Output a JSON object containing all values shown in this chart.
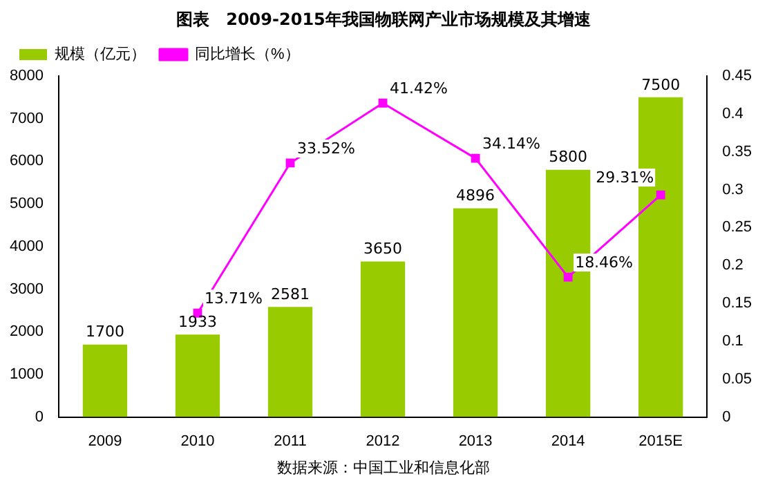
{
  "chart_data": {
    "type": "bar",
    "title": "图表　2009-2015年我国物联网产业市场规模及其增速",
    "categories": [
      "2009",
      "2010",
      "2011",
      "2012",
      "2013",
      "2014",
      "2015E"
    ],
    "series": [
      {
        "name": "规模（亿元）",
        "color": "#99cc00",
        "values": [
          1700,
          1933,
          2581,
          3650,
          4896,
          5800,
          7500
        ],
        "value_labels": [
          "1700",
          "1933",
          "2581",
          "3650",
          "4896",
          "5800",
          "7500"
        ]
      },
      {
        "name": "同比增长（%）",
        "type": "line",
        "axis": "y2",
        "color": "#ff00ff",
        "values": [
          null,
          0.1371,
          0.3352,
          0.4142,
          0.3414,
          0.1846,
          0.2931
        ],
        "value_labels": [
          null,
          "13.71%",
          "33.52%",
          "41.42%",
          "34.14%",
          "18.46%",
          "29.31%"
        ]
      }
    ],
    "ylim": [
      0,
      8000
    ],
    "yticks": [
      0,
      1000,
      2000,
      3000,
      4000,
      5000,
      6000,
      7000,
      8000
    ],
    "y2lim": [
      0,
      0.45
    ],
    "y2ticks": [
      0,
      0.05,
      0.1,
      0.15,
      0.2,
      0.25,
      0.3,
      0.35,
      0.4,
      0.45
    ],
    "grid": false,
    "legend": "top left",
    "marker": "square",
    "line_style": "solid",
    "annotations": [
      "数据来源：中国工业和信息化部"
    ]
  }
}
